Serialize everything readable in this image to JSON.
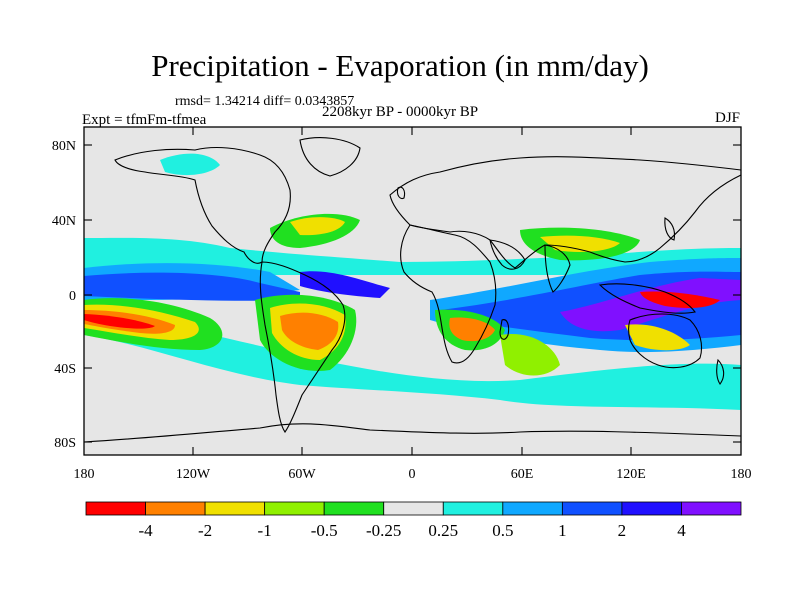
{
  "title": "Precipitation - Evaporation (in mm/day)",
  "stats": "rmsd= 1.34214  diff= 0.0343857",
  "period": "2208kyr BP - 0000kyr BP",
  "experiment": "Expt = tfmFm-tfmea",
  "season": "DJF",
  "lat_ticks": [
    "80N",
    "40N",
    "0",
    "40S",
    "80S"
  ],
  "lon_ticks": [
    "180",
    "120W",
    "60W",
    "0",
    "60E",
    "120E",
    "180"
  ],
  "colorbar": {
    "labels": [
      "-4",
      "-2",
      "-1",
      "-0.5",
      "-0.25",
      "0.25",
      "0.5",
      "1",
      "2",
      "4"
    ],
    "colors": [
      "#ff0000",
      "#ff8000",
      "#f0e000",
      "#90f000",
      "#20e020",
      "#e6e6e6",
      "#20f0e0",
      "#10a8ff",
      "#1050ff",
      "#2010ff",
      "#8010ff"
    ]
  },
  "colors": {
    "background": "#e6e6e6",
    "coast": "#000000"
  }
}
